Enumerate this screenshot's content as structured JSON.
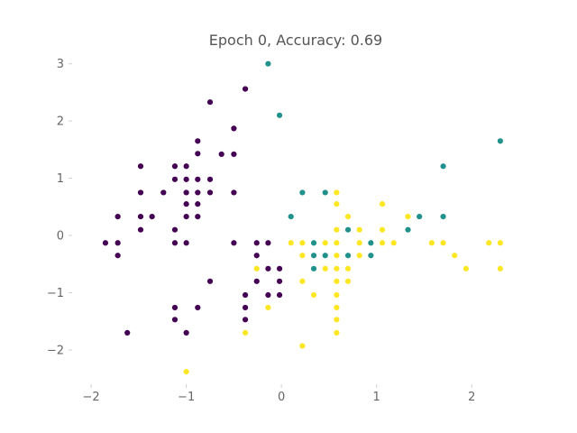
{
  "chart_data": {
    "type": "scatter",
    "title": "Epoch 0, Accuracy: 0.69",
    "xlabel": "",
    "ylabel": "",
    "xlim": [
      -2.2,
      2.5
    ],
    "ylim": [
      -2.6,
      3.2
    ],
    "xticks": [
      -2,
      -1,
      0,
      1,
      2
    ],
    "xtick_labels": [
      "−2",
      "−1",
      "0",
      "1",
      "2"
    ],
    "yticks": [
      -2,
      -1,
      0,
      1,
      2,
      3
    ],
    "ytick_labels": [
      "−2",
      "−1",
      "0",
      "1",
      "2",
      "3"
    ],
    "grid": false,
    "legend": "none",
    "series": [
      {
        "color": "#440154",
        "points": [
          [
            -0.38,
            2.56
          ],
          [
            -0.75,
            2.33
          ],
          [
            -0.5,
            1.87
          ],
          [
            -0.88,
            1.65
          ],
          [
            -0.63,
            1.42
          ],
          [
            -0.5,
            1.42
          ],
          [
            -1.48,
            1.21
          ],
          [
            -1.12,
            1.21
          ],
          [
            -1.0,
            1.21
          ],
          [
            -0.88,
            1.43
          ],
          [
            -1.0,
            0.98
          ],
          [
            -0.88,
            0.98
          ],
          [
            -0.75,
            0.98
          ],
          [
            -1.12,
            0.98
          ],
          [
            -1.48,
            0.75
          ],
          [
            -1.24,
            0.75
          ],
          [
            -1.0,
            0.75
          ],
          [
            -0.88,
            0.75
          ],
          [
            -0.75,
            0.75
          ],
          [
            -0.5,
            0.75
          ],
          [
            -1.0,
            0.55
          ],
          [
            -0.88,
            0.55
          ],
          [
            -1.0,
            0.33
          ],
          [
            -1.72,
            0.33
          ],
          [
            -1.48,
            0.33
          ],
          [
            -1.36,
            0.33
          ],
          [
            -0.88,
            0.33
          ],
          [
            -1.48,
            0.1
          ],
          [
            -1.12,
            0.1
          ],
          [
            -1.85,
            -0.13
          ],
          [
            -1.72,
            -0.13
          ],
          [
            -1.12,
            -0.13
          ],
          [
            -1.0,
            -0.13
          ],
          [
            -0.5,
            -0.13
          ],
          [
            -0.26,
            -0.13
          ],
          [
            -0.14,
            -0.13
          ],
          [
            -1.72,
            -0.35
          ],
          [
            -0.26,
            -0.35
          ],
          [
            -0.14,
            -0.58
          ],
          [
            -0.02,
            -0.58
          ],
          [
            -0.75,
            -0.8
          ],
          [
            -0.26,
            -0.8
          ],
          [
            -0.02,
            -0.8
          ],
          [
            -0.38,
            -1.04
          ],
          [
            -0.14,
            -1.04
          ],
          [
            -0.02,
            -1.04
          ],
          [
            -1.12,
            -1.26
          ],
          [
            -0.88,
            -1.26
          ],
          [
            -0.38,
            -1.26
          ],
          [
            -1.12,
            -1.47
          ],
          [
            -0.38,
            -1.47
          ],
          [
            -1.0,
            -1.7
          ],
          [
            -1.62,
            -1.7
          ]
        ]
      },
      {
        "color": "#21918c",
        "points": [
          [
            -0.14,
            3.0
          ],
          [
            -0.02,
            2.1
          ],
          [
            2.3,
            1.65
          ],
          [
            1.7,
            1.21
          ],
          [
            0.22,
            0.75
          ],
          [
            0.46,
            0.75
          ],
          [
            0.1,
            0.33
          ],
          [
            1.45,
            0.33
          ],
          [
            1.7,
            0.33
          ],
          [
            0.7,
            0.1
          ],
          [
            1.33,
            0.1
          ],
          [
            0.34,
            -0.13
          ],
          [
            0.94,
            -0.13
          ],
          [
            0.34,
            -0.35
          ],
          [
            0.46,
            -0.35
          ],
          [
            0.7,
            -0.35
          ],
          [
            0.94,
            -0.35
          ],
          [
            0.34,
            -0.58
          ]
        ]
      },
      {
        "color": "#fde725",
        "points": [
          [
            0.58,
            0.75
          ],
          [
            0.58,
            0.55
          ],
          [
            1.06,
            0.55
          ],
          [
            0.7,
            0.33
          ],
          [
            1.33,
            0.33
          ],
          [
            0.58,
            0.1
          ],
          [
            0.82,
            0.1
          ],
          [
            1.06,
            0.1
          ],
          [
            0.1,
            -0.13
          ],
          [
            0.22,
            -0.13
          ],
          [
            0.46,
            -0.13
          ],
          [
            0.58,
            -0.13
          ],
          [
            0.82,
            -0.13
          ],
          [
            1.06,
            -0.13
          ],
          [
            1.18,
            -0.13
          ],
          [
            1.58,
            -0.13
          ],
          [
            1.7,
            -0.13
          ],
          [
            2.18,
            -0.13
          ],
          [
            2.3,
            -0.13
          ],
          [
            0.22,
            -0.35
          ],
          [
            0.58,
            -0.35
          ],
          [
            0.82,
            -0.35
          ],
          [
            1.82,
            -0.35
          ],
          [
            -0.26,
            -0.58
          ],
          [
            0.46,
            -0.58
          ],
          [
            0.58,
            -0.58
          ],
          [
            0.7,
            -0.58
          ],
          [
            1.94,
            -0.58
          ],
          [
            2.3,
            -0.58
          ],
          [
            0.22,
            -0.8
          ],
          [
            0.58,
            -0.8
          ],
          [
            0.7,
            -0.8
          ],
          [
            0.34,
            -1.04
          ],
          [
            0.58,
            -1.04
          ],
          [
            -0.14,
            -1.26
          ],
          [
            0.58,
            -1.26
          ],
          [
            0.58,
            -1.47
          ],
          [
            -0.38,
            -1.7
          ],
          [
            0.58,
            -1.7
          ],
          [
            0.22,
            -1.93
          ],
          [
            -1.0,
            -2.38
          ]
        ]
      }
    ]
  }
}
